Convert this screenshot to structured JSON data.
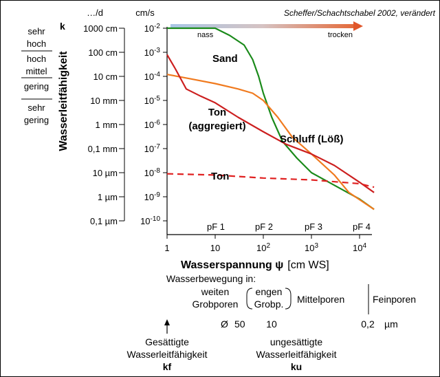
{
  "source_note": "Scheffer/Schachtschabel 2002, verändert",
  "moisture_arrow": {
    "left": "nass",
    "right": "trocken"
  },
  "k_column": {
    "header": "…/d",
    "k_label": "k",
    "ticks": [
      "1000 cm",
      "100 cm",
      "10 cm",
      "10 mm",
      "1 mm",
      "0,1 mm",
      "10 µm",
      "1 µm",
      "0,1 µm"
    ]
  },
  "ms_column": {
    "header": "cm/s",
    "ticks": [
      {
        "base": "10",
        "exp": "-2"
      },
      {
        "base": "10",
        "exp": "-3"
      },
      {
        "base": "10",
        "exp": "-4"
      },
      {
        "base": "10",
        "exp": "-5"
      },
      {
        "base": "10",
        "exp": "-6"
      },
      {
        "base": "10",
        "exp": "-7"
      },
      {
        "base": "10",
        "exp": "-8"
      },
      {
        "base": "10",
        "exp": "-9"
      },
      {
        "base": "10",
        "exp": "-10"
      }
    ]
  },
  "classes": [
    [
      "sehr",
      "hoch"
    ],
    [
      "hoch"
    ],
    [
      "mittel"
    ],
    [
      "gering"
    ],
    [
      "sehr",
      "gering"
    ]
  ],
  "y_axis_title": "Wasserleitfähigkeit",
  "pf_labels": [
    "pF 1",
    "pF 2",
    "pF 3",
    "pF 4"
  ],
  "x_ticks": [
    {
      "base": "1",
      "exp": ""
    },
    {
      "base": "10",
      "exp": ""
    },
    {
      "base": "10",
      "exp": "2"
    },
    {
      "base": "10",
      "exp": "3"
    },
    {
      "base": "10",
      "exp": "4"
    }
  ],
  "x_axis_title": {
    "main": "Wasserspannung ψ",
    "unit": "[cm WS]"
  },
  "pores": {
    "title": "Wasserbewegung in:",
    "weite": [
      "weiten",
      "Grobporen"
    ],
    "enge": [
      "engen",
      "Grobp."
    ],
    "mittel": "Mittelporen",
    "fein": "Feinporen",
    "diameter": [
      "Ø",
      "50",
      "10",
      "0,2",
      "µm"
    ]
  },
  "bottom": {
    "left": [
      "Gesättigte",
      "Wasserleitfähigkeit",
      "kf"
    ],
    "right": [
      "ungesättigte",
      "Wasserleitfähigkeit",
      "ku"
    ]
  },
  "chart_data": {
    "type": "line",
    "x_scale": "log",
    "y_scale": "log",
    "x_unit": "cm WS",
    "y_unit": "cm/s",
    "xlim": [
      1,
      20000
    ],
    "ylim": [
      1e-10,
      0.01
    ],
    "colors": {
      "Sand": "#1a8a1a",
      "Schluff (Löß)": "#f07a1e",
      "Ton (aggregiert)": "#cc1f1f",
      "Ton": "#e02020"
    },
    "series": [
      {
        "name": "Sand",
        "label_lines": [
          "Sand"
        ],
        "dash": false,
        "points": [
          [
            1,
            0.01
          ],
          [
            5,
            0.01
          ],
          [
            10,
            0.01
          ],
          [
            20,
            0.005
          ],
          [
            40,
            0.002
          ],
          [
            60,
            0.0005
          ],
          [
            80,
            0.0001
          ],
          [
            100,
            2e-05
          ],
          [
            150,
            2e-06
          ],
          [
            250,
            2e-07
          ],
          [
            500,
            4e-08
          ],
          [
            1000,
            1e-08
          ],
          [
            3000,
            3e-09
          ],
          [
            10000,
            8e-10
          ],
          [
            20000,
            3e-10
          ]
        ]
      },
      {
        "name": "Schluff (Löß)",
        "label_lines": [
          "Schluff (Löß)"
        ],
        "dash": false,
        "points": [
          [
            1,
            0.00012
          ],
          [
            3,
            8e-05
          ],
          [
            10,
            5e-05
          ],
          [
            30,
            3e-05
          ],
          [
            60,
            2e-05
          ],
          [
            100,
            1e-05
          ],
          [
            200,
            2e-06
          ],
          [
            400,
            3e-07
          ],
          [
            1000,
            6e-08
          ],
          [
            3000,
            8e-09
          ],
          [
            6000,
            1.5e-09
          ],
          [
            20000,
            3e-10
          ]
        ]
      },
      {
        "name": "Ton (aggregiert)",
        "label_lines": [
          "Ton",
          "(aggregiert)"
        ],
        "dash": false,
        "points": [
          [
            1,
            0.0008
          ],
          [
            1.5,
            0.0002
          ],
          [
            2.5,
            3e-05
          ],
          [
            5,
            1.5e-05
          ],
          [
            10,
            8e-06
          ],
          [
            30,
            2e-06
          ],
          [
            100,
            5e-07
          ],
          [
            300,
            1.5e-07
          ],
          [
            1000,
            6e-08
          ],
          [
            3000,
            2e-08
          ],
          [
            10000,
            4e-09
          ],
          [
            20000,
            1.5e-09
          ]
        ]
      },
      {
        "name": "Ton",
        "label_lines": [
          "Ton"
        ],
        "dash": true,
        "points": [
          [
            1,
            9e-09
          ],
          [
            10,
            8e-09
          ],
          [
            100,
            6e-09
          ],
          [
            1000,
            5e-09
          ],
          [
            10000,
            3.5e-09
          ],
          [
            20000,
            2.5e-09
          ]
        ]
      }
    ]
  }
}
